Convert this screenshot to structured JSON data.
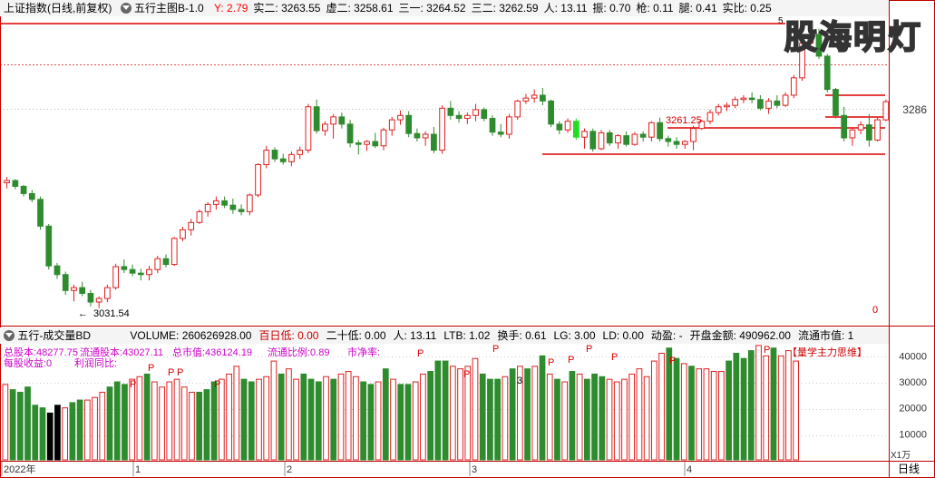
{
  "main_header": {
    "title": "上证指数(日线,前复权)",
    "indicator": "五行主图B-1.0",
    "fields": [
      {
        "label": "Y: 2.79",
        "color": "#ff0000"
      },
      {
        "label": "实二: 3263.55",
        "color": "#000000"
      },
      {
        "label": "虚二: 3258.61",
        "color": "#000000"
      },
      {
        "label": "三一: 3264.52",
        "color": "#000000"
      },
      {
        "label": "三二: 3262.59",
        "color": "#000000"
      },
      {
        "label": "人: 13.11",
        "color": "#000000"
      },
      {
        "label": "振: 0.70",
        "color": "#000000"
      },
      {
        "label": "枪: 0.11",
        "color": "#000000"
      },
      {
        "label": "腿: 0.41",
        "color": "#000000"
      },
      {
        "label": "实比: 0.25",
        "color": "#000000"
      }
    ]
  },
  "watermark": "股海明灯",
  "price_axis": {
    "label": "3286"
  },
  "annotations": {
    "low_label": "3031.54",
    "low_arrow": "←",
    "support_label": "3261.25",
    "top_marker": "5",
    "zero_label": "0"
  },
  "volume_header": {
    "indicator": "五行-成交量BD",
    "fields": [
      {
        "label": "VOLUME: 260626928.00",
        "color": "#000000"
      },
      {
        "label": "百日低: 0.00",
        "color": "#cc0000"
      },
      {
        "label": "二十低: 0.00",
        "color": "#000000"
      },
      {
        "label": "人: 13.11",
        "color": "#000000"
      },
      {
        "label": "LTB: 1.02",
        "color": "#000000"
      },
      {
        "label": "换手: 0.61",
        "color": "#000000"
      },
      {
        "label": "LG: 3.00",
        "color": "#000000"
      },
      {
        "label": "LD: 0.00",
        "color": "#000000"
      },
      {
        "label": "动盈: -",
        "color": "#000000"
      },
      {
        "label": "开盘金额: 490962.00",
        "color": "#000000"
      },
      {
        "label": "流通市值: 1",
        "color": "#000000"
      }
    ]
  },
  "volume_overlay": {
    "line1": [
      "总股本:48277.75",
      "流通股本:43027.11",
      "总市值:436124.19",
      "流通比例:0.89",
      "市净率:"
    ],
    "line2": [
      "每股收益:0",
      "利润同比:"
    ],
    "right_label": "【量学主力思维】",
    "marker_3": "3",
    "p_marker": "P"
  },
  "volume_axis": {
    "labels": [
      "40000",
      "30000",
      "20000",
      "10000"
    ],
    "unit": "X1万"
  },
  "time_axis": {
    "labels": [
      "2022年",
      "1",
      "2",
      "3",
      "4"
    ],
    "period": "日线"
  },
  "colors": {
    "up": "#e02020",
    "down": "#2e8b2e",
    "bright_down": "#22dd22",
    "line_red": "#dd0000",
    "frame": "#c00000",
    "dotted": "#e05050"
  },
  "chart_data": [
    {
      "type": "candlestick",
      "name": "上证指数",
      "ohlc": [
        [
          3205,
          3213,
          3197,
          3208
        ],
        [
          3208,
          3210,
          3196,
          3200
        ],
        [
          3200,
          3202,
          3186,
          3190
        ],
        [
          3190,
          3195,
          3178,
          3182
        ],
        [
          3182,
          3186,
          3140,
          3145
        ],
        [
          3145,
          3148,
          3085,
          3090
        ],
        [
          3090,
          3094,
          3072,
          3078
        ],
        [
          3078,
          3082,
          3050,
          3056
        ],
        [
          3056,
          3064,
          3041,
          3060
        ],
        [
          3060,
          3068,
          3048,
          3052
        ],
        [
          3052,
          3057,
          3034,
          3040
        ],
        [
          3040,
          3048,
          3031.54,
          3045
        ],
        [
          3045,
          3064,
          3040,
          3060
        ],
        [
          3060,
          3093,
          3057,
          3089
        ],
        [
          3089,
          3099,
          3080,
          3085
        ],
        [
          3085,
          3092,
          3076,
          3080
        ],
        [
          3080,
          3086,
          3070,
          3078
        ],
        [
          3078,
          3090,
          3070,
          3085
        ],
        [
          3085,
          3104,
          3080,
          3100
        ],
        [
          3100,
          3106,
          3088,
          3092
        ],
        [
          3092,
          3130,
          3090,
          3128
        ],
        [
          3128,
          3144,
          3124,
          3140
        ],
        [
          3140,
          3155,
          3132,
          3150
        ],
        [
          3150,
          3168,
          3148,
          3165
        ],
        [
          3165,
          3178,
          3158,
          3175
        ],
        [
          3175,
          3186,
          3168,
          3180
        ],
        [
          3180,
          3186,
          3170,
          3174
        ],
        [
          3174,
          3183,
          3162,
          3168
        ],
        [
          3168,
          3175,
          3160,
          3165
        ],
        [
          3165,
          3190,
          3160,
          3188
        ],
        [
          3188,
          3232,
          3185,
          3230
        ],
        [
          3230,
          3256,
          3225,
          3250
        ],
        [
          3250,
          3254,
          3234,
          3238
        ],
        [
          3238,
          3245,
          3230,
          3234
        ],
        [
          3234,
          3248,
          3228,
          3244
        ],
        [
          3244,
          3255,
          3238,
          3250
        ],
        [
          3250,
          3314,
          3246,
          3310
        ],
        [
          3310,
          3320,
          3273,
          3277
        ],
        [
          3277,
          3290,
          3270,
          3286
        ],
        [
          3286,
          3300,
          3266,
          3296
        ],
        [
          3296,
          3302,
          3280,
          3286
        ],
        [
          3286,
          3292,
          3254,
          3260
        ],
        [
          3260,
          3264,
          3244,
          3258
        ],
        [
          3258,
          3264,
          3249,
          3262
        ],
        [
          3262,
          3274,
          3253,
          3256
        ],
        [
          3256,
          3281,
          3250,
          3278
        ],
        [
          3278,
          3296,
          3270,
          3292
        ],
        [
          3292,
          3305,
          3285,
          3298
        ],
        [
          3298,
          3304,
          3268,
          3273
        ],
        [
          3273,
          3280,
          3262,
          3267
        ],
        [
          3267,
          3276,
          3256,
          3272
        ],
        [
          3272,
          3282,
          3246,
          3250
        ],
        [
          3250,
          3312,
          3245,
          3308
        ],
        [
          3308,
          3318,
          3292,
          3298
        ],
        [
          3298,
          3304,
          3288,
          3294
        ],
        [
          3294,
          3302,
          3286,
          3298
        ],
        [
          3298,
          3314,
          3290,
          3306
        ],
        [
          3306,
          3309,
          3290,
          3294
        ],
        [
          3294,
          3298,
          3270,
          3275
        ],
        [
          3275,
          3286,
          3268,
          3272
        ],
        [
          3272,
          3300,
          3266,
          3296
        ],
        [
          3296,
          3320,
          3292,
          3318
        ],
        [
          3318,
          3328,
          3314,
          3322
        ],
        [
          3322,
          3334,
          3316,
          3326
        ],
        [
          3326,
          3336,
          3312,
          3318
        ],
        [
          3318,
          3320,
          3282,
          3286
        ],
        [
          3286,
          3290,
          3272,
          3278
        ],
        [
          3278,
          3294,
          3274,
          3290
        ],
        [
          3290,
          3294,
          3264,
          3268
        ],
        [
          3268,
          3280,
          3252,
          3276
        ],
        [
          3276,
          3280,
          3248,
          3252
        ],
        [
          3252,
          3278,
          3250,
          3274
        ],
        [
          3274,
          3278,
          3256,
          3260
        ],
        [
          3260,
          3272,
          3252,
          3270
        ],
        [
          3270,
          3276,
          3255,
          3258
        ],
        [
          3258,
          3275,
          3256,
          3272
        ],
        [
          3272,
          3276,
          3262,
          3268
        ],
        [
          3268,
          3290,
          3262,
          3288
        ],
        [
          3288,
          3295,
          3262,
          3266
        ],
        [
          3266,
          3270,
          3255,
          3262
        ],
        [
          3262,
          3268,
          3252,
          3258
        ],
        [
          3258,
          3264,
          3252,
          3262
        ],
        [
          3262,
          3284,
          3250,
          3280
        ],
        [
          3280,
          3292,
          3278,
          3290
        ],
        [
          3290,
          3306,
          3286,
          3302
        ],
        [
          3302,
          3314,
          3298,
          3310
        ],
        [
          3310,
          3316,
          3304,
          3312
        ],
        [
          3312,
          3324,
          3308,
          3320
        ],
        [
          3320,
          3326,
          3315,
          3322
        ],
        [
          3322,
          3330,
          3315,
          3320
        ],
        [
          3320,
          3326,
          3305,
          3308
        ],
        [
          3308,
          3322,
          3300,
          3318
        ],
        [
          3318,
          3326,
          3308,
          3312
        ],
        [
          3312,
          3330,
          3310,
          3326
        ],
        [
          3326,
          3354,
          3322,
          3350
        ],
        [
          3350,
          3404,
          3346,
          3398
        ],
        [
          3398,
          3415,
          3394,
          3410
        ],
        [
          3410,
          3418,
          3376,
          3380
        ],
        [
          3380,
          3383,
          3330,
          3334
        ],
        [
          3334,
          3336,
          3294,
          3298
        ],
        [
          3298,
          3310,
          3262,
          3267
        ],
        [
          3267,
          3282,
          3256,
          3278
        ],
        [
          3278,
          3290,
          3272,
          3285
        ],
        [
          3285,
          3300,
          3255,
          3264
        ],
        [
          3264,
          3296,
          3262,
          3292
        ],
        [
          3292,
          3320,
          3290,
          3317
        ]
      ]
    },
    {
      "type": "bar",
      "name": "五行-成交量BD",
      "ylim": [
        0,
        45000
      ],
      "unit": "X1万",
      "values": [
        29000,
        27000,
        26000,
        28000,
        21000,
        20000,
        18000,
        21000,
        20000,
        22000,
        23000,
        23000,
        24000,
        26000,
        28000,
        30000,
        29000,
        31000,
        32000,
        33000,
        30000,
        28000,
        30000,
        31000,
        28000,
        26000,
        26000,
        27000,
        30000,
        31000,
        33000,
        36000,
        31000,
        30000,
        31000,
        32000,
        38000,
        33000,
        35000,
        31000,
        33000,
        31000,
        30000,
        32000,
        31000,
        33000,
        34000,
        32000,
        30000,
        29000,
        30000,
        35000,
        31000,
        29000,
        29000,
        30000,
        33000,
        34000,
        38000,
        38000,
        36000,
        35000,
        36000,
        39000,
        33000,
        31000,
        31000,
        32000,
        35000,
        36000,
        35000,
        36000,
        40000,
        33000,
        31000,
        30000,
        34000,
        33000,
        31000,
        33000,
        32000,
        31000,
        30000,
        31000,
        33000,
        35000,
        32000,
        38000,
        41000,
        43000,
        39000,
        37000,
        36000,
        35000,
        35000,
        34000,
        34000,
        38000,
        41000,
        39000,
        42000,
        44000,
        40000,
        43000,
        40000,
        42000,
        38000
      ]
    }
  ]
}
